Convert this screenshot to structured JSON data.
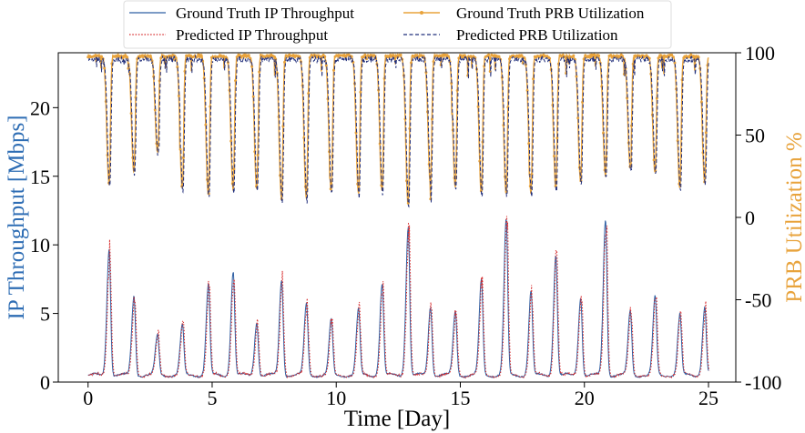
{
  "chart_data": {
    "type": "line",
    "xlabel": "Time [Day]",
    "ylabel": "IP Throughput [Mbps]",
    "ylabel_right": "PRB Utilization %",
    "xlim": [
      -1.2,
      26.1
    ],
    "ylim": [
      0,
      24
    ],
    "ylim_right": [
      -100,
      100
    ],
    "x_ticks": [
      0,
      5,
      10,
      15,
      20,
      25
    ],
    "y_ticks": [
      0,
      5,
      10,
      15,
      20
    ],
    "y_ticks_right": [
      -100,
      -50,
      0,
      50,
      100
    ],
    "legend_position": "top-center",
    "grid": false,
    "colors": {
      "gt_ip": "#2e5fa3",
      "pred_ip": "#d62728",
      "gt_prb": "#e8a33c",
      "pred_prb": "#1f2d7a",
      "ylabel": "#2e6db4",
      "ylabel_right": "#e8a33c"
    },
    "series": [
      {
        "name": "Ground Truth IP Throughput",
        "key": "gt_ip",
        "axis": "left"
      },
      {
        "name": "Predicted IP Throughput",
        "key": "pred_ip",
        "axis": "left"
      },
      {
        "name": "Ground Truth PRB Utilization",
        "key": "gt_prb",
        "axis": "right"
      },
      {
        "name": "Predicted PRB Utilization",
        "key": "pred_prb",
        "axis": "right"
      }
    ],
    "ip_baseline": 0.5,
    "prb_baseline": 98,
    "daily_peaks": [
      {
        "day": 0.85,
        "ip_peak": 9.8,
        "prb_min": 21
      },
      {
        "day": 1.85,
        "ip_peak": 6.3,
        "prb_min": 28
      },
      {
        "day": 2.8,
        "ip_peak": 3.4,
        "prb_min": 40
      },
      {
        "day": 3.8,
        "ip_peak": 4.1,
        "prb_min": 18
      },
      {
        "day": 4.85,
        "ip_peak": 7.1,
        "prb_min": 14
      },
      {
        "day": 5.85,
        "ip_peak": 8.1,
        "prb_min": 17
      },
      {
        "day": 6.8,
        "ip_peak": 4.4,
        "prb_min": 17
      },
      {
        "day": 7.8,
        "ip_peak": 7.5,
        "prb_min": 11
      },
      {
        "day": 8.8,
        "ip_peak": 5.7,
        "prb_min": 12
      },
      {
        "day": 9.8,
        "ip_peak": 4.5,
        "prb_min": 16
      },
      {
        "day": 10.9,
        "ip_peak": 5.3,
        "prb_min": 15
      },
      {
        "day": 11.85,
        "ip_peak": 7.1,
        "prb_min": 16
      },
      {
        "day": 12.9,
        "ip_peak": 11.3,
        "prb_min": 8
      },
      {
        "day": 13.8,
        "ip_peak": 5.5,
        "prb_min": 20
      },
      {
        "day": 14.8,
        "ip_peak": 5.2,
        "prb_min": 19
      },
      {
        "day": 15.85,
        "ip_peak": 7.4,
        "prb_min": 15
      },
      {
        "day": 16.85,
        "ip_peak": 11.8,
        "prb_min": 15
      },
      {
        "day": 17.85,
        "ip_peak": 6.6,
        "prb_min": 15
      },
      {
        "day": 18.85,
        "ip_peak": 9.3,
        "prb_min": 19
      },
      {
        "day": 19.85,
        "ip_peak": 6.2,
        "prb_min": 22
      },
      {
        "day": 20.85,
        "ip_peak": 11.9,
        "prb_min": 26
      },
      {
        "day": 21.85,
        "ip_peak": 5.2,
        "prb_min": 30
      },
      {
        "day": 22.85,
        "ip_peak": 6.2,
        "prb_min": 27
      },
      {
        "day": 23.85,
        "ip_peak": 4.9,
        "prb_min": 18
      },
      {
        "day": 24.85,
        "ip_peak": 5.5,
        "prb_min": 22
      }
    ]
  }
}
